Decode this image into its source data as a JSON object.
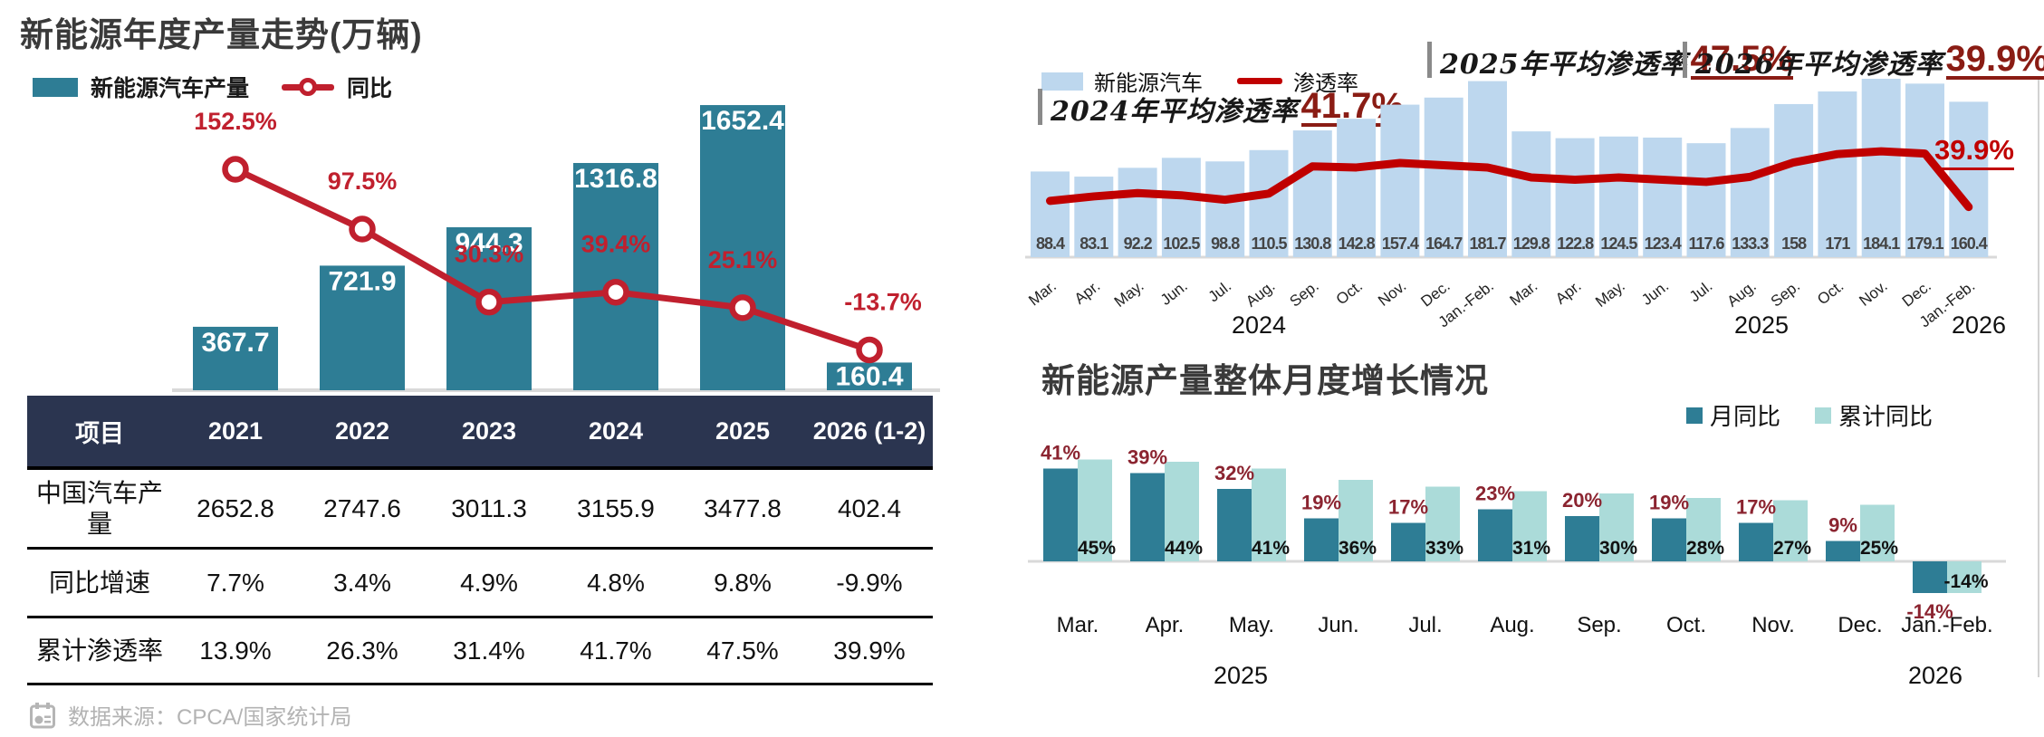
{
  "colors": {
    "teal_bar": "#2e7d95",
    "crimson_line": "#c0202e",
    "light_blue_bar": "#bdd7ee",
    "penetration_line_red": "#c00000",
    "dark_red_annotation": "#8a1c14",
    "dark_red_bar_label": "#8b2430",
    "light_teal_bar": "#abdbd9",
    "table_header_bg": "#2b3550",
    "baseline_gray": "#d9d9d9"
  },
  "left": {
    "title": "新能源年度产量走势(万辆)",
    "legend": {
      "bar_label": "新能源汽车产量",
      "line_label": "同比"
    },
    "table": {
      "header": [
        "项目",
        "2021",
        "2022",
        "2023",
        "2024",
        "2025",
        "2026 (1-2)"
      ],
      "rows": [
        {
          "label": "中国汽车产量",
          "values": [
            "2652.8",
            "2747.6",
            "3011.3",
            "3155.9",
            "3477.8",
            "402.4"
          ]
        },
        {
          "label": "同比增速",
          "values": [
            "7.7%",
            "3.4%",
            "4.9%",
            "4.8%",
            "9.8%",
            "-9.9%"
          ]
        },
        {
          "label": "累计渗透率",
          "values": [
            "13.9%",
            "26.3%",
            "31.4%",
            "41.7%",
            "47.5%",
            "39.9%"
          ]
        }
      ]
    },
    "source": "数据来源：CPCA/国家统计局"
  },
  "top_right": {
    "legend": {
      "bar_label": "新能源汽车",
      "line_label": "渗透率"
    },
    "annotations": [
      {
        "text": "2024年平均渗透率",
        "value": "41.7%"
      },
      {
        "text": "2025年平均渗透率",
        "value": "47.5%"
      },
      {
        "text": "2026年平均渗透率",
        "value": "39.9%"
      }
    ],
    "line_end_label": "39.9%"
  },
  "bottom_right": {
    "title": "新能源产量整体月度增长情况",
    "legend": {
      "monthly_label": "月同比",
      "cumulative_label": "累计同比"
    }
  },
  "chart_data": [
    {
      "id": "annual_production",
      "type": "bar+line",
      "title": "新能源年度产量走势(万辆)",
      "unit": "万辆",
      "categories": [
        "2021",
        "2022",
        "2023",
        "2024",
        "2025",
        "2026 (1-2)"
      ],
      "series": [
        {
          "name": "新能源汽车产量",
          "type": "bar",
          "values": [
            367.7,
            721.9,
            944.3,
            1316.8,
            1652.4,
            160.4
          ]
        },
        {
          "name": "同比",
          "type": "line",
          "unit": "%",
          "values": [
            152.5,
            97.5,
            30.3,
            39.4,
            25.1,
            -13.7
          ]
        }
      ],
      "legend_position": "top-left",
      "grid": false
    },
    {
      "id": "monthly_production",
      "type": "bar+line",
      "unit": "万辆",
      "categories": [
        "Mar.",
        "Apr.",
        "May.",
        "Jun.",
        "Jul.",
        "Aug.",
        "Sep.",
        "Oct.",
        "Nov.",
        "Dec.",
        "Jan.-Feb.",
        "Mar.",
        "Apr.",
        "May.",
        "Jun.",
        "Jul.",
        "Aug.",
        "Sep.",
        "Oct.",
        "Nov.",
        "Dec.",
        "Jan.-Feb."
      ],
      "year_groups": [
        {
          "label": "2024"
        },
        {
          "label": "2025"
        },
        {
          "label": "2026"
        }
      ],
      "series": [
        {
          "name": "新能源汽车",
          "type": "bar",
          "values": [
            88.4,
            83.1,
            92.2,
            102.5,
            98.8,
            110.5,
            130.8,
            142.8,
            157.4,
            164.7,
            181.7,
            129.8,
            122.8,
            124.5,
            123.4,
            117.6,
            133.3,
            158,
            171,
            184.1,
            179.1,
            160.4
          ]
        },
        {
          "name": "渗透率",
          "type": "line",
          "unit": "%",
          "estimated": true,
          "values": [
            41.0,
            41.8,
            42.4,
            42.0,
            41.2,
            42.3,
            47.2,
            47.0,
            47.8,
            47.4,
            47.0,
            45.2,
            44.8,
            45.2,
            44.8,
            44.4,
            45.3,
            47.9,
            49.4,
            49.9,
            49.5,
            39.9
          ]
        }
      ],
      "annotations": [
        "2024年平均渗透率41.7%",
        "2025年平均渗透率47.5%",
        "2026年平均渗透率39.9%"
      ],
      "grid": false
    },
    {
      "id": "monthly_growth",
      "type": "bar",
      "title": "新能源产量整体月度增长情况",
      "unit": "%",
      "categories": [
        "Mar.",
        "Apr.",
        "May.",
        "Jun.",
        "Jul.",
        "Aug.",
        "Sep.",
        "Oct.",
        "Nov.",
        "Dec.",
        "Jan.-Feb."
      ],
      "year_groups": [
        {
          "label": "2025"
        },
        {
          "label": "2026"
        }
      ],
      "series": [
        {
          "name": "月同比",
          "values": [
            41,
            39,
            32,
            19,
            17,
            23,
            20,
            19,
            17,
            9,
            -14
          ]
        },
        {
          "name": "累计同比",
          "values": [
            45,
            44,
            41,
            36,
            33,
            31,
            30,
            28,
            27,
            25,
            -14
          ]
        }
      ],
      "legend_position": "top-right",
      "grid": false
    }
  ]
}
